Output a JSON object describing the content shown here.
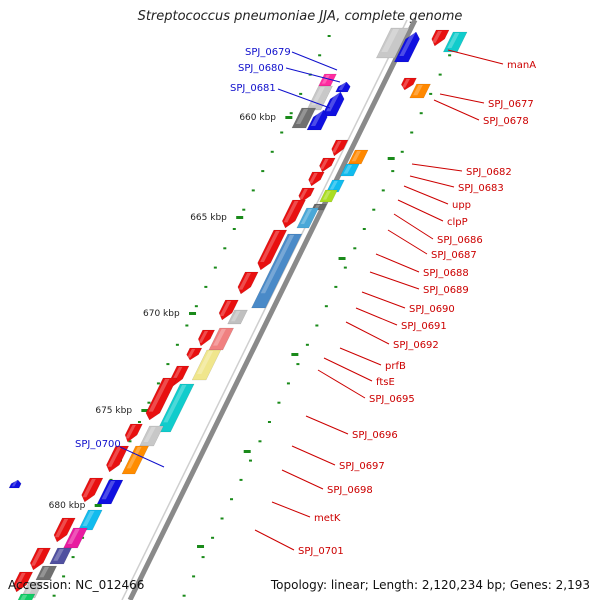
{
  "title": "Streptococcus pneumoniae JJA, complete genome",
  "accession": "Accession: NC_012466",
  "topology": "Topology: linear; Length: 2,120,234 bp; Genes: 2,193",
  "ruler_ticks": [
    {
      "label": "660 kbp"
    },
    {
      "label": "665 kbp"
    },
    {
      "label": "670 kbp"
    },
    {
      "label": "675 kbp"
    },
    {
      "label": "680 kbp"
    }
  ],
  "genes_left": [
    {
      "name": "SPJ_0679",
      "color": "#1010cc"
    },
    {
      "name": "SPJ_0680",
      "color": "#1010cc"
    },
    {
      "name": "SPJ_0681",
      "color": "#1010cc"
    },
    {
      "name": "SPJ_0700",
      "color": "#1010cc"
    }
  ],
  "genes_right": [
    {
      "name": "manA"
    },
    {
      "name": "SPJ_0677"
    },
    {
      "name": "SPJ_0678"
    },
    {
      "name": "SPJ_0682"
    },
    {
      "name": "SPJ_0683"
    },
    {
      "name": "upp"
    },
    {
      "name": "clpP"
    },
    {
      "name": "SPJ_0686"
    },
    {
      "name": "SPJ_0687"
    },
    {
      "name": "SPJ_0688"
    },
    {
      "name": "SPJ_0689"
    },
    {
      "name": "SPJ_0690"
    },
    {
      "name": "SPJ_0691"
    },
    {
      "name": "SPJ_0692"
    },
    {
      "name": "prfB"
    },
    {
      "name": "ftsE"
    },
    {
      "name": "SPJ_0695"
    },
    {
      "name": "SPJ_0696"
    },
    {
      "name": "SPJ_0697"
    },
    {
      "name": "SPJ_0698"
    },
    {
      "name": "metK"
    },
    {
      "name": "SPJ_0701"
    }
  ],
  "colors": {
    "forward_strand": "#e81010",
    "reverse_strand": "#1010e0",
    "right_label": "#cc0000",
    "left_label": "#0000aa",
    "tick": "#1a8a1a",
    "backbone": "#8a8a8a"
  }
}
